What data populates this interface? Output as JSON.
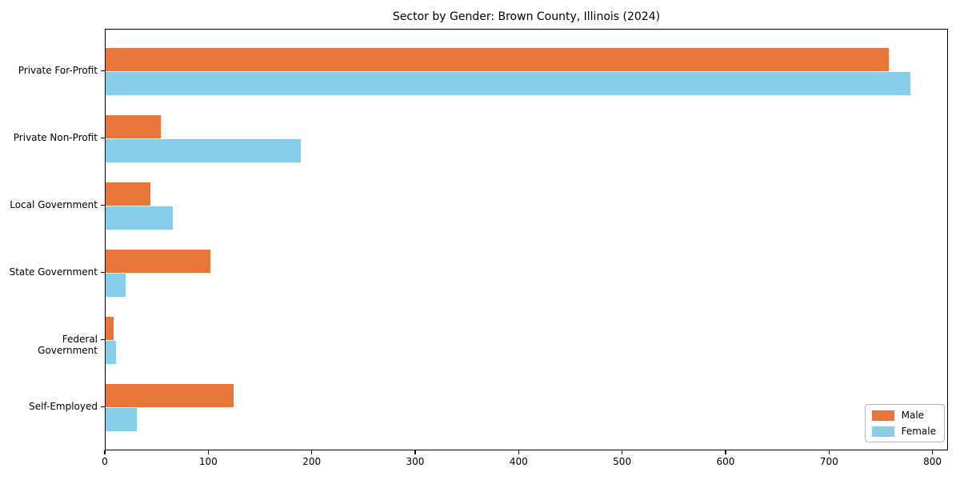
{
  "chart_data": {
    "type": "bar",
    "orientation": "horizontal",
    "title": "Sector by Gender: Brown County, Illinois (2024)",
    "categories": [
      "Private For-Profit",
      "Private Non-Profit",
      "Local Government",
      "State Government",
      "Federal Government",
      "Self-Employed"
    ],
    "series": [
      {
        "name": "Male",
        "color": "#e8763a",
        "values": [
          757,
          53,
          43,
          101,
          8,
          124
        ]
      },
      {
        "name": "Female",
        "color": "#87ceeb",
        "values": [
          778,
          189,
          65,
          19,
          10,
          30
        ]
      }
    ],
    "x_ticks": [
      0,
      100,
      200,
      300,
      400,
      500,
      600,
      700,
      800
    ],
    "xlim": [
      0,
      815
    ],
    "xlabel": "",
    "ylabel": "",
    "grid": false,
    "legend_position": "lower right",
    "axis_color": "#000000",
    "background_color": "#ffffff"
  }
}
